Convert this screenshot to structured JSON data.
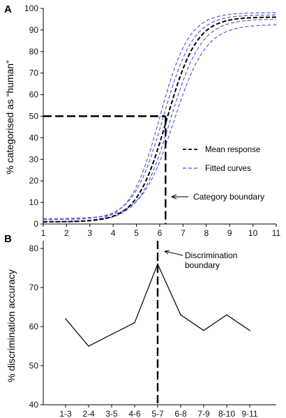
{
  "chart_data": [
    {
      "panel": "A",
      "type": "line",
      "ylabel": "% categorised as “human”",
      "xlabel": "",
      "xlim": [
        1,
        11
      ],
      "ylim": [
        0,
        100
      ],
      "x_ticks": [
        "1",
        "2",
        "3",
        "4",
        "5",
        "6",
        "7",
        "8",
        "9",
        "10",
        "11"
      ],
      "y_ticks": [
        "0",
        "10",
        "20",
        "30",
        "40",
        "50",
        "60",
        "70",
        "80",
        "90",
        "100"
      ],
      "legend": [
        "Mean response",
        "Fitted curves"
      ],
      "legend_position": "right-middle",
      "series": [
        {
          "name": "Mean response",
          "style": "dashed-black",
          "x0": 6.3,
          "k": 1.55,
          "lower": 1,
          "upper": 96
        },
        {
          "name": "Fitted curves",
          "style": "dashed-blue",
          "x0": 6.0,
          "k": 1.6,
          "lower": 1,
          "upper": 98
        },
        {
          "style": "dashed-blue",
          "x0": 6.15,
          "k": 1.55,
          "lower": 2,
          "upper": 97
        },
        {
          "style": "dashed-blue",
          "x0": 6.45,
          "k": 1.5,
          "lower": 1,
          "upper": 95
        },
        {
          "style": "dashed-blue",
          "x0": 6.6,
          "k": 1.45,
          "lower": 2.5,
          "upper": 92.5
        }
      ],
      "category_boundary": {
        "x": 6.25,
        "y": 50
      },
      "annotation": "Category boundary",
      "colors": {
        "mean": "#000000",
        "fitted": "#4a4ad9"
      }
    },
    {
      "panel": "B",
      "type": "line",
      "ylabel": "% discrimination accuracy",
      "xlabel": "",
      "ylim": [
        40,
        80
      ],
      "y_ticks": [
        "40",
        "50",
        "60",
        "70",
        "80"
      ],
      "categories": [
        "1-3",
        "2-4",
        "3-5",
        "4-6",
        "5-7",
        "6-8",
        "7-9",
        "8-10",
        "9-11"
      ],
      "values": [
        62,
        55,
        58,
        61,
        76,
        63,
        59,
        63,
        59
      ],
      "discrimination_boundary_category": "5-7",
      "annotation": [
        "Discrimination",
        "boundary"
      ],
      "colors": {
        "line": "#111111"
      }
    }
  ]
}
